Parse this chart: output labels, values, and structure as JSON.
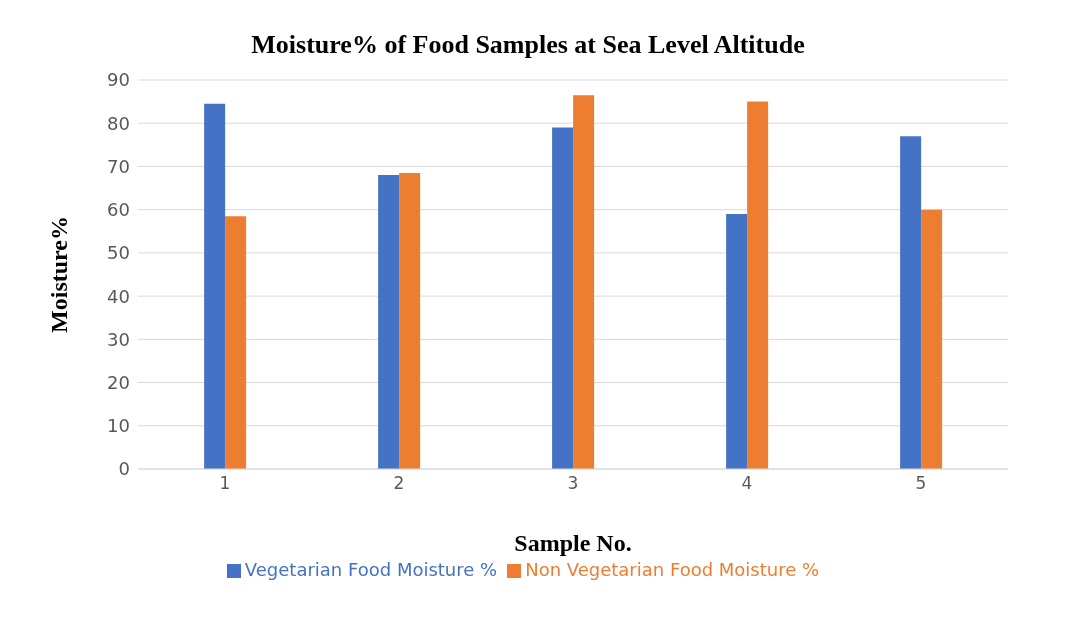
{
  "chart_data": {
    "type": "bar",
    "title": "Moisture% of Food Samples at Sea Level Altitude",
    "xlabel": "Sample No.",
    "ylabel": "Moisture%",
    "categories": [
      "1",
      "2",
      "3",
      "4",
      "5"
    ],
    "series": [
      {
        "name": "Vegetarian Food Moisture %",
        "color": "#4472c4",
        "values": [
          84.5,
          68,
          79,
          59,
          77
        ]
      },
      {
        "name": "Non Vegetarian Food Moisture %",
        "color": "#ed7d31",
        "values": [
          58.5,
          68.5,
          86.5,
          85,
          60
        ]
      }
    ],
    "ylim": [
      0,
      90
    ],
    "yticks": [
      0,
      10,
      20,
      30,
      40,
      50,
      60,
      70,
      80,
      90
    ],
    "grid": "y",
    "legend": "bottom"
  }
}
